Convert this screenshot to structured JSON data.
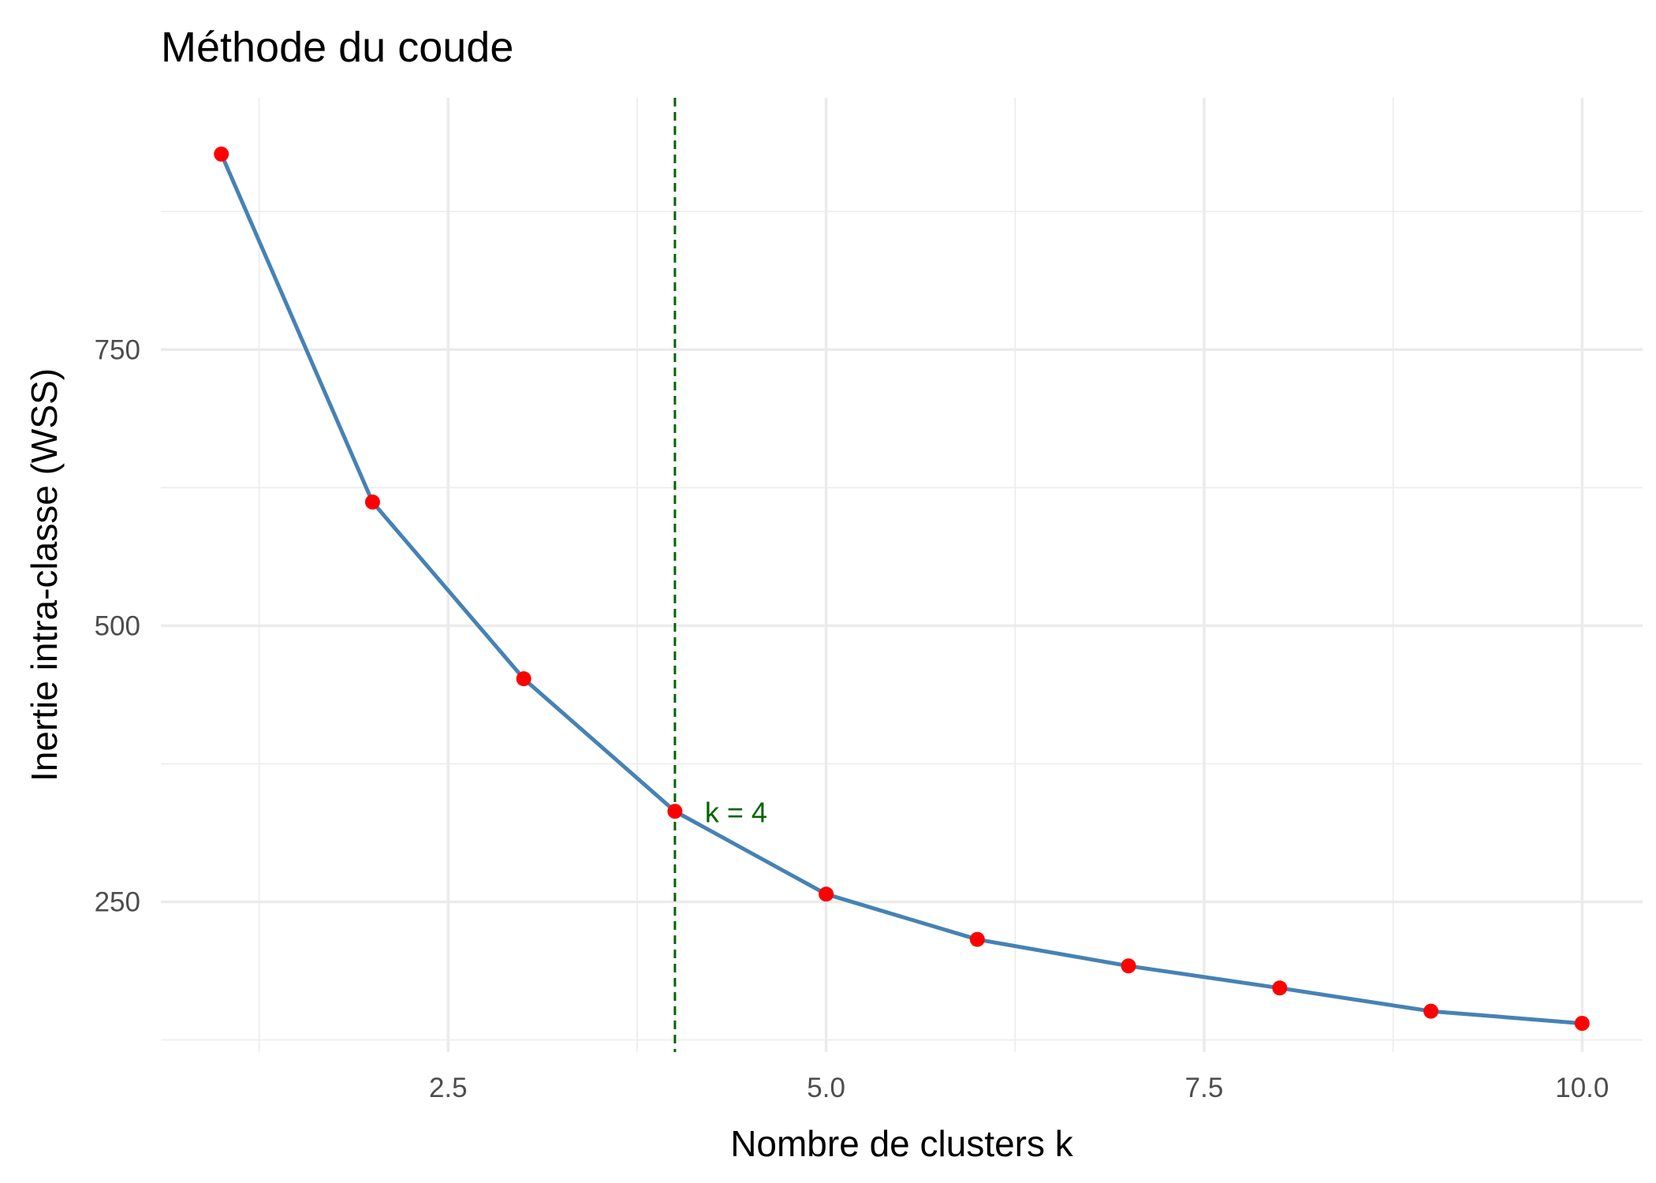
{
  "chart_data": {
    "type": "line",
    "title": "Méthode du coude",
    "xlabel": "Nombre de clusters k",
    "ylabel": "Inertie intra-classe (WSS)",
    "x": [
      1,
      2,
      3,
      4,
      5,
      6,
      7,
      8,
      9,
      10
    ],
    "y": [
      927,
      612,
      452,
      332,
      257,
      216,
      192,
      172,
      151,
      140
    ],
    "xlim": [
      0.6,
      10.4
    ],
    "ylim": [
      114,
      978
    ],
    "x_ticks": [
      2.5,
      5.0,
      7.5,
      10.0
    ],
    "x_tick_labels": [
      "2.5",
      "5.0",
      "7.5",
      "10.0"
    ],
    "y_ticks": [
      250,
      500,
      750
    ],
    "y_tick_labels": [
      "250",
      "500",
      "750"
    ],
    "x_minor_ticks": [
      1.25,
      3.75,
      6.25,
      8.75
    ],
    "y_minor_ticks": [
      125,
      375,
      625,
      875
    ],
    "grid": true,
    "legend": "none",
    "line_color": "#4682b4",
    "point_color": "#ff0000",
    "reference_line": {
      "x": 4,
      "style": "dashed",
      "color": "#006400",
      "label": "k = 4"
    }
  }
}
